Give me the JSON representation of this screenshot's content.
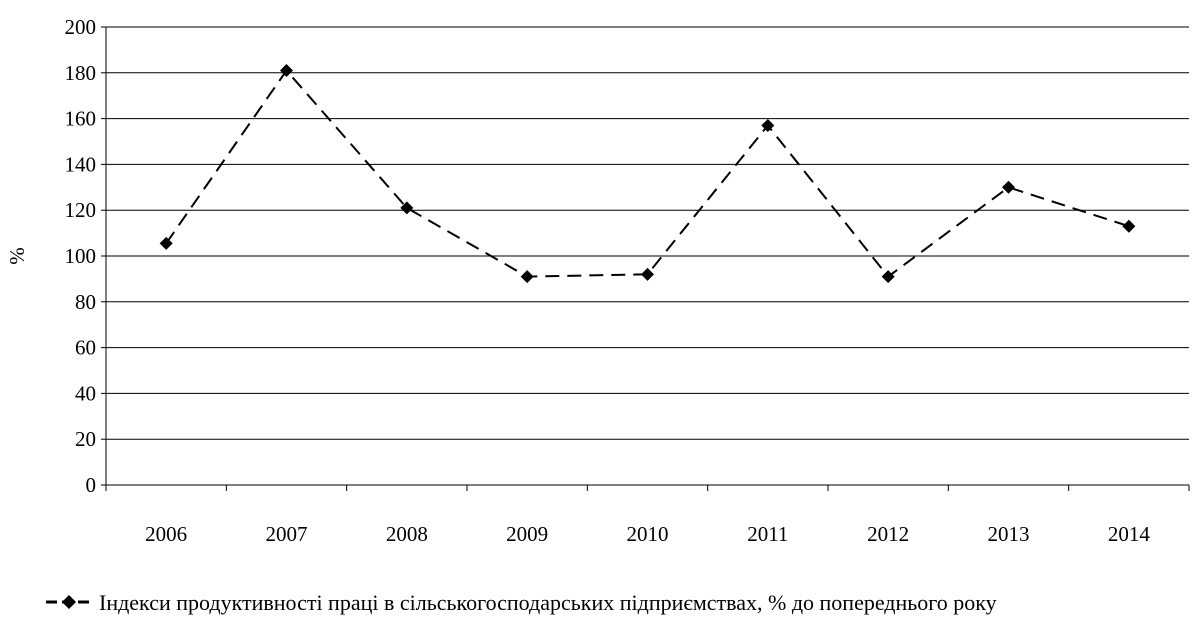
{
  "chart_data": {
    "type": "line",
    "categories": [
      "2006",
      "2007",
      "2008",
      "2009",
      "2010",
      "2011",
      "2012",
      "2013",
      "2014"
    ],
    "series": [
      {
        "name": "Індекси продуктивності праці в сільськогосподарських підприємствах, % до попереднього року",
        "values": [
          105.5,
          181,
          121,
          91,
          92,
          157,
          91,
          130,
          113
        ],
        "color": "#000000",
        "line_style": "dashed",
        "marker": "diamond"
      }
    ],
    "xlabel": "",
    "ylabel": "%",
    "ylim": [
      0,
      200
    ],
    "yticks": [
      "0",
      "20",
      "40",
      "60",
      "80",
      "100",
      "120",
      "140",
      "160",
      "180",
      "200"
    ],
    "grid": true,
    "legend_position": "bottom"
  }
}
